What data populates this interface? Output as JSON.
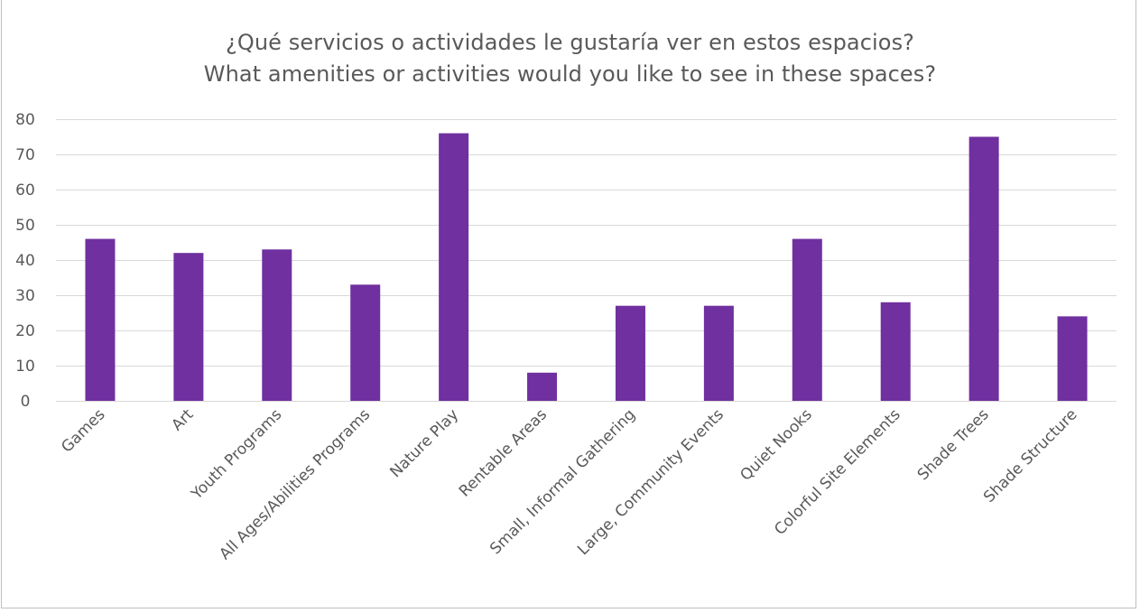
{
  "chart_data": {
    "type": "bar",
    "title": "¿Qué servicios o actividades le gustaría ver en estos espacios?",
    "subtitle": "What amenities or activities would you like to see in these spaces?",
    "categories": [
      "Games",
      "Art",
      "Youth Programs",
      "All Ages/Abilities Programs",
      "Nature Play",
      "Rentable Areas",
      "Small, Informal Gathering",
      "Large, Community Events",
      "Quiet Nooks",
      "Colorful Site Elements",
      "Shade Trees",
      "Shade Structure"
    ],
    "values": [
      46,
      42,
      43,
      33,
      76,
      8,
      27,
      27,
      46,
      28,
      75,
      24
    ],
    "ylim": [
      0,
      80
    ],
    "yticks": [
      0,
      10,
      20,
      30,
      40,
      50,
      60,
      70,
      80
    ],
    "xlabel": "",
    "ylabel": "",
    "grid": true,
    "legend": "none",
    "bar_color": "#7030a0",
    "grid_color": "#d9d9d9"
  }
}
